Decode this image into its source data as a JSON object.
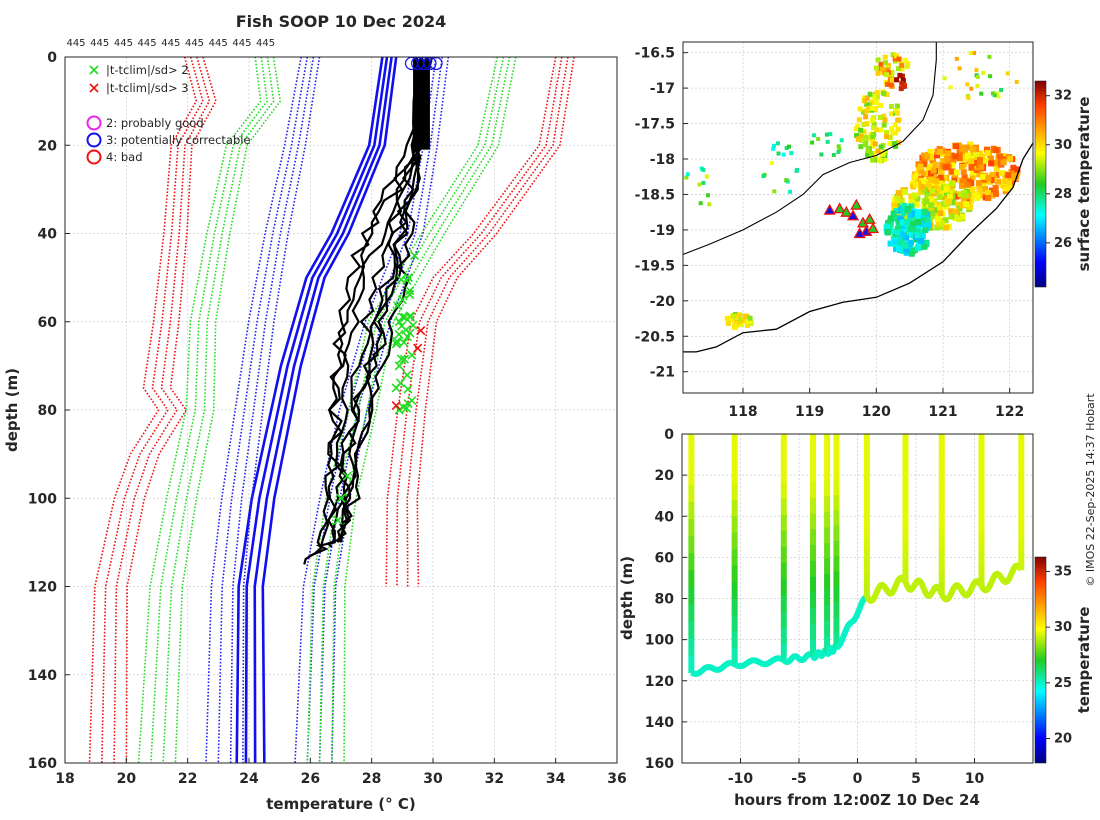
{
  "figure": {
    "title": "Fish SOOP 10 Dec 2024",
    "top_counts": [
      "445",
      "445",
      "445",
      "445",
      "445",
      "445",
      "445",
      "445",
      "445"
    ],
    "credit": "© IMOS 22-Sep-2025 14:37 Hobart"
  },
  "chart_data": [
    {
      "type": "line",
      "name": "temperature-depth profiles",
      "xlabel": "temperature (° C)",
      "ylabel": "depth (m)",
      "xlim": [
        18,
        36
      ],
      "ylim": [
        160,
        0
      ],
      "xticks": [
        "18",
        "20",
        "22",
        "24",
        "26",
        "28",
        "30",
        "32",
        "34",
        "36"
      ],
      "yticks": [
        "0",
        "20",
        "40",
        "60",
        "80",
        "100",
        "120",
        "140",
        "160"
      ],
      "legend": [
        {
          "label": "|t-tclim|/sd> 2",
          "marker": "x",
          "color": "#22dd22"
        },
        {
          "label": "|t-tclim|/sd> 3",
          "marker": "x",
          "color": "#ee1111"
        },
        {
          "label": "2: probably good",
          "marker": "o",
          "color": "#ee22ee"
        },
        {
          "label": "3: potentially correctable",
          "marker": "o",
          "color": "#1111ee"
        },
        {
          "label": "4: bad",
          "marker": "o",
          "color": "#ee1111"
        }
      ],
      "climatology": [
        {
          "name": "clim-mean",
          "style": "solid",
          "color": "#1010ee",
          "depth": [
            0,
            20,
            40,
            50,
            60,
            70,
            80,
            90,
            100,
            110,
            120,
            160
          ],
          "t": [
            28.6,
            28.2,
            27.0,
            26.2,
            25.8,
            25.4,
            25.1,
            24.8,
            24.5,
            24.3,
            24.1,
            24.1
          ]
        },
        {
          "name": "clim-1sd-low",
          "style": "dotted",
          "color": "#2222ee",
          "depth": [
            0,
            20,
            40,
            60,
            80,
            100,
            120,
            160
          ],
          "t": [
            26.0,
            25.5,
            24.9,
            24.4,
            24.0,
            23.6,
            23.3,
            23.2
          ]
        },
        {
          "name": "clim-1sd-high",
          "style": "dotted",
          "color": "#2222ee",
          "depth": [
            0,
            20,
            40,
            60,
            80,
            100,
            120,
            160
          ],
          "t": [
            30.2,
            29.8,
            29.3,
            28.2,
            27.4,
            26.8,
            26.3,
            26.1
          ]
        },
        {
          "name": "clim-2sd-low",
          "style": "dotted",
          "color": "#22dd22",
          "depth": [
            0,
            10,
            20,
            40,
            60,
            80,
            100,
            120,
            160
          ],
          "t": [
            24.5,
            24.7,
            23.6,
            23.0,
            22.5,
            22.4,
            21.8,
            21.3,
            21.0
          ]
        },
        {
          "name": "clim-2sd-high",
          "style": "dotted",
          "color": "#22dd22",
          "depth": [
            0,
            20,
            40,
            60,
            80,
            100,
            120,
            160
          ],
          "t": [
            32.4,
            31.8,
            30.0,
            28.3,
            27.7,
            27.0,
            26.6,
            26.5
          ]
        },
        {
          "name": "clim-3sd-low",
          "style": "dotted",
          "color": "#ee1111",
          "depth": [
            0,
            10,
            20,
            40,
            60,
            75,
            80,
            90,
            100,
            120,
            160
          ],
          "t": [
            22.2,
            22.6,
            21.8,
            21.6,
            21.3,
            21.0,
            21.5,
            20.6,
            20.1,
            19.5,
            19.4
          ]
        },
        {
          "name": "clim-3sd-high",
          "style": "dotted",
          "color": "#ee1111",
          "depth": [
            0,
            20,
            40,
            50,
            60,
            80,
            100,
            120
          ],
          "t": [
            34.3,
            33.8,
            31.7,
            30.4,
            29.7,
            29.3,
            29.0,
            29.0
          ]
        }
      ],
      "profiles": [
        {
          "depth": [
            0,
            20,
            30,
            40,
            50,
            60,
            70,
            80,
            90,
            100,
            108,
            111
          ],
          "t": [
            29.6,
            29.4,
            29.2,
            29.0,
            28.7,
            28.4,
            28.1,
            27.8,
            27.6,
            27.4,
            27.1,
            26.7
          ]
        },
        {
          "depth": [
            0,
            20,
            30,
            40,
            50,
            60,
            70,
            80,
            90,
            100,
            110,
            113
          ],
          "t": [
            29.7,
            29.5,
            29.0,
            28.3,
            27.7,
            27.4,
            27.3,
            27.2,
            27.0,
            26.9,
            26.6,
            26.0
          ]
        },
        {
          "depth": [
            0,
            20,
            30,
            40,
            50,
            60,
            70,
            80,
            90,
            100,
            110,
            115
          ],
          "t": [
            29.5,
            29.3,
            28.8,
            28.0,
            27.4,
            27.1,
            26.9,
            26.8,
            26.8,
            26.7,
            26.4,
            25.8
          ]
        },
        {
          "depth": [
            0,
            20,
            30,
            40,
            50,
            60,
            70,
            80,
            90,
            100,
            110
          ],
          "t": [
            29.8,
            29.6,
            29.3,
            28.8,
            28.5,
            28.2,
            27.9,
            27.5,
            27.2,
            27.0,
            26.8
          ]
        },
        {
          "depth": [
            0,
            20,
            30,
            40,
            50,
            60,
            70,
            80,
            90,
            100,
            110
          ],
          "t": [
            29.7,
            29.5,
            29.4,
            29.2,
            29.0,
            28.7,
            28.3,
            27.9,
            27.6,
            27.3,
            27.0
          ]
        },
        {
          "depth": [
            0,
            20,
            30,
            40,
            50,
            60,
            70,
            80,
            90,
            100,
            110
          ],
          "t": [
            29.6,
            29.5,
            29.0,
            28.6,
            28.1,
            27.8,
            27.6,
            27.4,
            27.2,
            27.1,
            26.9
          ]
        },
        {
          "depth": [
            0,
            20,
            30,
            40,
            50,
            60,
            70,
            80,
            90,
            100,
            112
          ],
          "t": [
            29.6,
            29.3,
            28.6,
            27.8,
            27.3,
            27.0,
            26.9,
            26.8,
            26.8,
            26.6,
            26.3
          ]
        },
        {
          "depth": [
            0,
            20,
            35,
            50,
            65,
            80,
            90,
            100,
            110
          ],
          "t": [
            29.5,
            29.4,
            29.1,
            28.6,
            28.0,
            27.5,
            27.3,
            27.2,
            27.0
          ]
        }
      ],
      "flagged_points": {
        "gt2sd": {
          "depth": [
            45,
            50,
            55,
            60,
            65,
            70,
            75,
            80,
            95,
            100,
            105
          ],
          "t": [
            29.4,
            29.2,
            29.0,
            28.9,
            28.8,
            28.9,
            28.8,
            28.9,
            27.2,
            27.0,
            26.9
          ]
        },
        "gt3sd": {
          "depth": [
            62,
            66,
            79
          ],
          "t": [
            29.6,
            29.5,
            28.8
          ]
        }
      },
      "surface_circles": {
        "depth": [
          1,
          1,
          1,
          1,
          1
        ],
        "t": [
          29.3,
          29.5,
          29.7,
          29.9,
          30.1
        ]
      }
    },
    {
      "type": "heatmap",
      "name": "surface temperature map",
      "xlim": [
        117.1,
        122.35
      ],
      "ylim": [
        -21.3,
        -16.35
      ],
      "xticks": [
        "118",
        "119",
        "120",
        "121",
        "122"
      ],
      "yticks": [
        "-16.5",
        "-17",
        "-17.5",
        "-18",
        "-18.5",
        "-19",
        "-19.5",
        "-20",
        "-20.5",
        "-21"
      ],
      "colorbar": {
        "label": "surface temperature",
        "range": [
          24.2,
          32.6
        ],
        "ticks": [
          "32",
          "30",
          "28",
          "26"
        ]
      },
      "tracks": [
        {
          "name": "ship-positions",
          "lon": [
            119.3,
            119.45,
            119.55,
            119.65,
            119.7,
            119.8,
            119.85,
            119.9,
            119.95,
            119.75
          ],
          "lat": [
            -18.72,
            -18.7,
            -18.75,
            -18.8,
            -18.65,
            -18.9,
            -19.02,
            -18.85,
            -18.98,
            -19.05
          ]
        }
      ]
    },
    {
      "type": "heatmap",
      "name": "temperature time-depth section",
      "xlabel": "hours from 12:00Z 10 Dec 24",
      "ylabel": "depth (m)",
      "xlim": [
        -15,
        15
      ],
      "ylim": [
        160,
        0
      ],
      "xticks": [
        "-10",
        "-5",
        "0",
        "5",
        "10"
      ],
      "yticks": [
        "0",
        "20",
        "40",
        "60",
        "80",
        "100",
        "120",
        "140",
        "160"
      ],
      "colorbar": {
        "label": "temperature",
        "range": [
          17.8,
          36.3
        ],
        "ticks": [
          "35",
          "30",
          "25",
          "20"
        ]
      },
      "casts": [
        {
          "time": -14.2,
          "max_depth": 116
        },
        {
          "time": -10.5,
          "max_depth": 112
        },
        {
          "time": -6.3,
          "max_depth": 110
        },
        {
          "time": -3.8,
          "max_depth": 108
        },
        {
          "time": -2.6,
          "max_depth": 106
        },
        {
          "time": -1.8,
          "max_depth": 104
        },
        {
          "time": 0.8,
          "max_depth": 79
        },
        {
          "time": 4.1,
          "max_depth": 72
        },
        {
          "time": 7.2,
          "max_depth": 78
        },
        {
          "time": 10.6,
          "max_depth": 74
        },
        {
          "time": 14.0,
          "max_depth": 66
        }
      ]
    }
  ]
}
